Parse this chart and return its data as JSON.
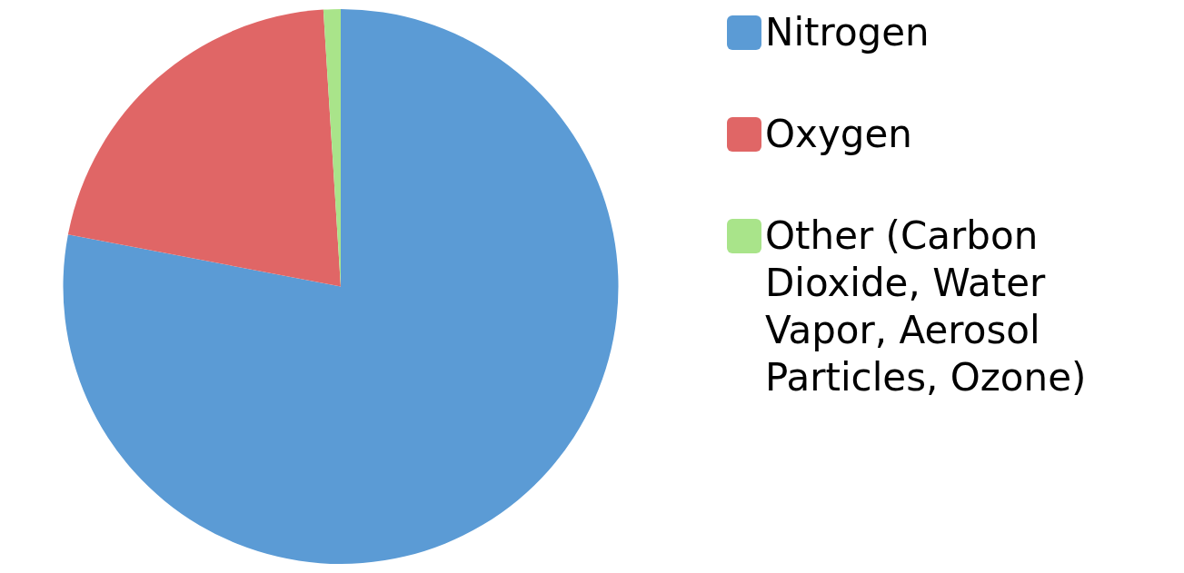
{
  "chart_data": {
    "type": "pie",
    "categories": [
      "Nitrogen",
      "Oxygen",
      "Other (Carbon Dioxide, Water Vapor, Aerosol Particles, Ozone)"
    ],
    "values": [
      78,
      21,
      1
    ],
    "colors": [
      "#5b9bd5",
      "#e06666",
      "#a9e48a"
    ],
    "legend": "right"
  }
}
